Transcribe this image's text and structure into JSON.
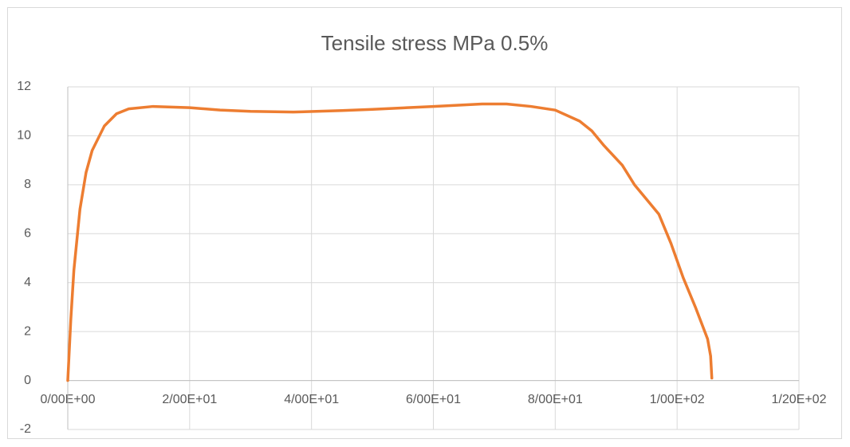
{
  "chart_data": {
    "type": "line",
    "title": "Tensile stress MPa 0.5%",
    "x": [
      0,
      0.5,
      1,
      2,
      3,
      4,
      6,
      8,
      10,
      14,
      20,
      25,
      30,
      37,
      45,
      50,
      60,
      68,
      72,
      76,
      80,
      84,
      86,
      88,
      91,
      93,
      97,
      99,
      101,
      103,
      105,
      105.5,
      105.7
    ],
    "values": [
      0,
      2.5,
      4.5,
      7.0,
      8.5,
      9.4,
      10.4,
      10.9,
      11.1,
      11.2,
      11.15,
      11.05,
      11.0,
      10.97,
      11.03,
      11.08,
      11.2,
      11.3,
      11.3,
      11.2,
      11.05,
      10.6,
      10.2,
      9.6,
      8.8,
      8.0,
      6.8,
      5.6,
      4.2,
      3.0,
      1.7,
      1.0,
      0.1
    ],
    "color": "#ed7d31",
    "xlim": [
      0,
      120
    ],
    "xticks": [
      {
        "value": 0,
        "label": "0/00E+00"
      },
      {
        "value": 20,
        "label": "2/00E+01"
      },
      {
        "value": 40,
        "label": "4/00E+01"
      },
      {
        "value": 60,
        "label": "6/00E+01"
      },
      {
        "value": 80,
        "label": "8/00E+01"
      },
      {
        "value": 100,
        "label": "1/00E+02"
      },
      {
        "value": 120,
        "label": "1/20E+02"
      }
    ],
    "ylim": [
      -2,
      12
    ],
    "yticks": [
      -2,
      0,
      2,
      4,
      6,
      8,
      10,
      12
    ],
    "grid": true
  }
}
